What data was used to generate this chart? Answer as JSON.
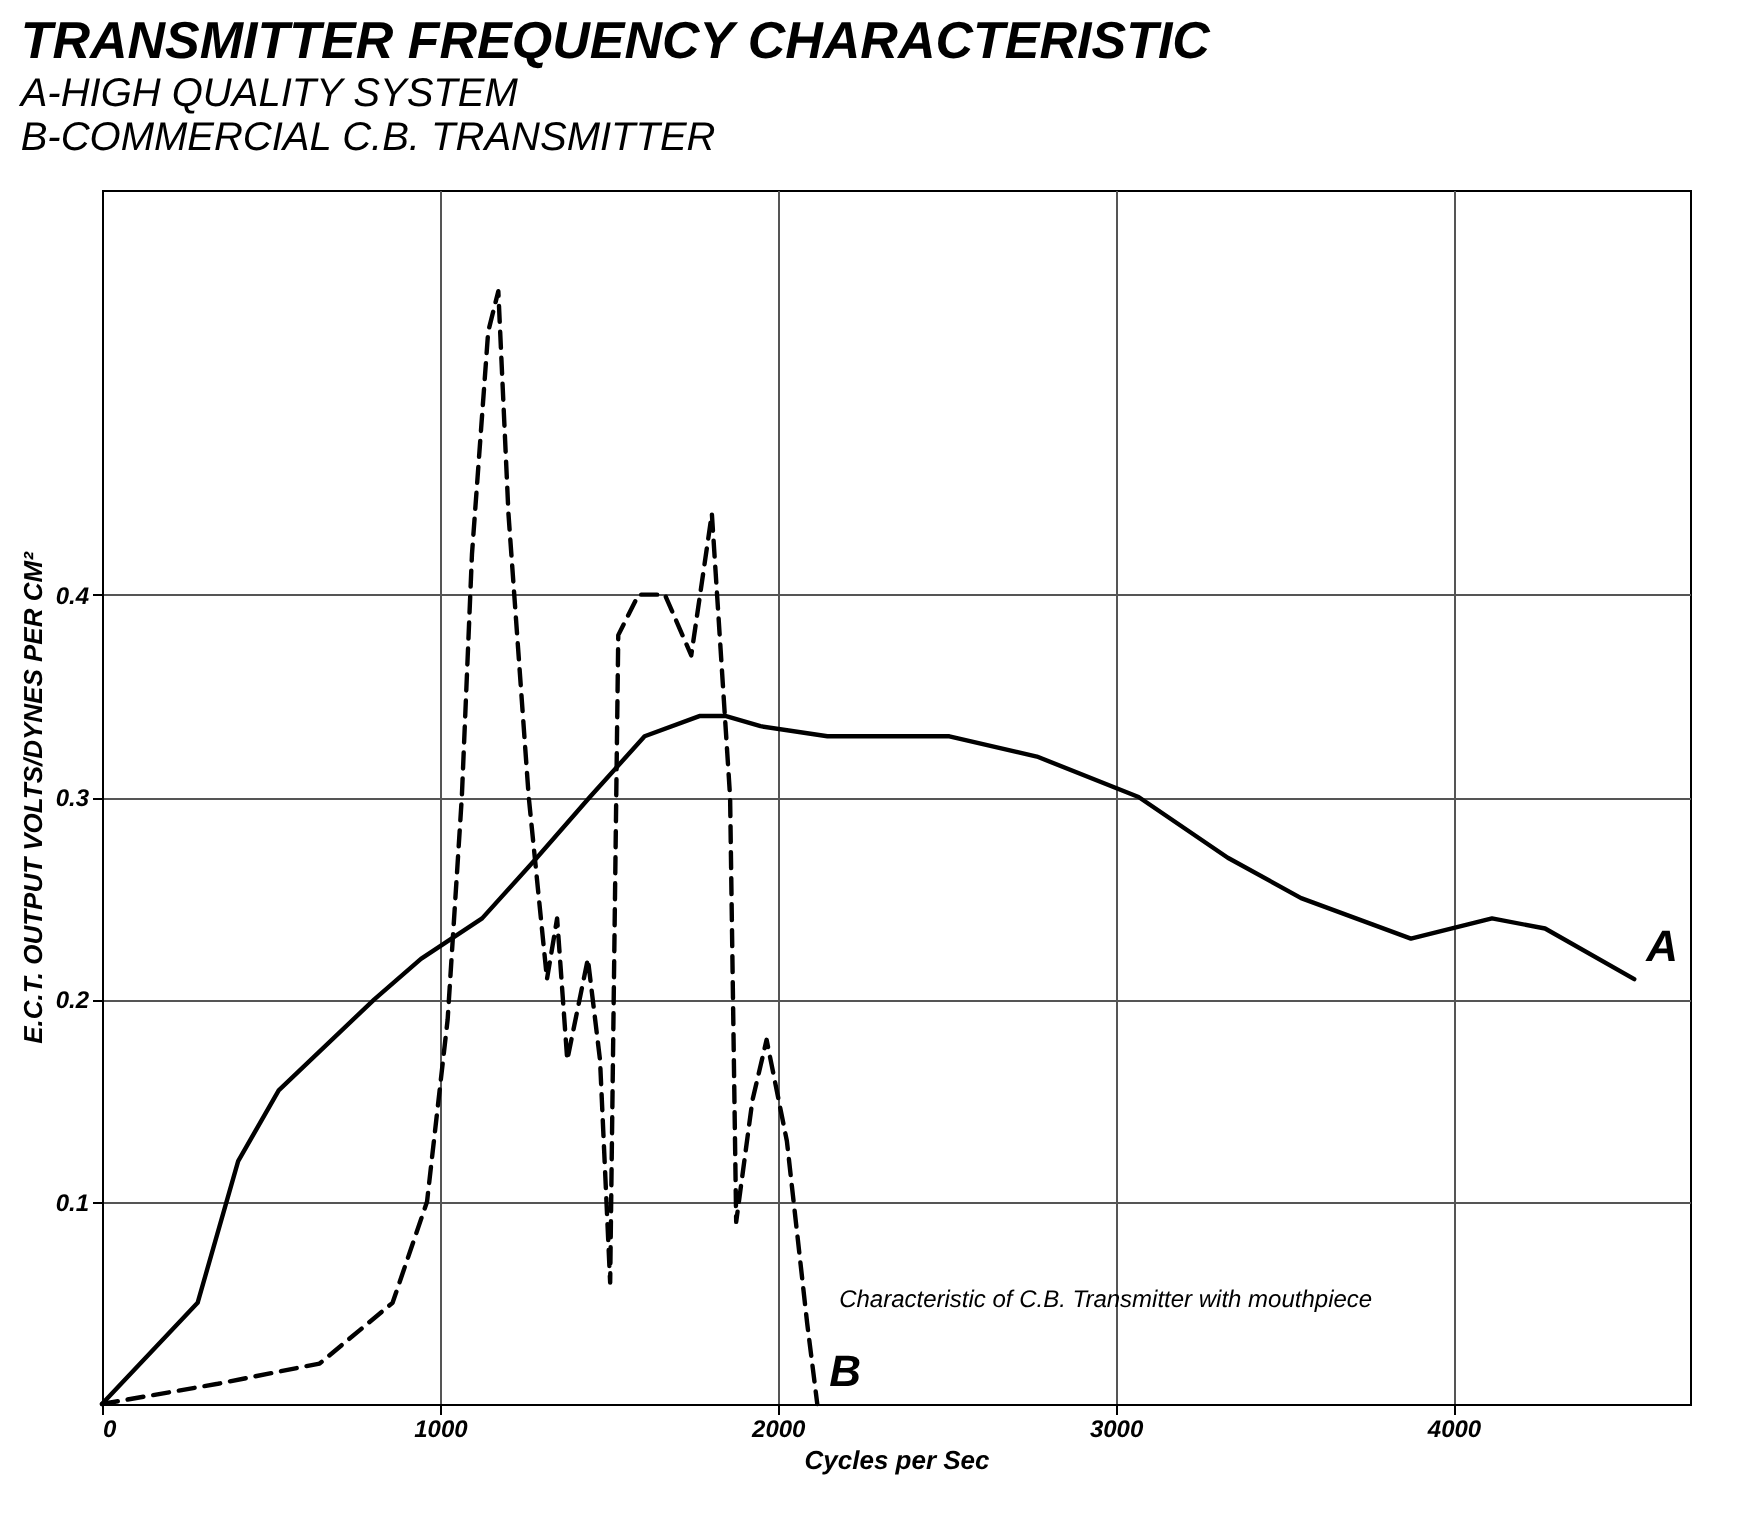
{
  "chart_data": {
    "type": "line",
    "title": "TRANSMITTER FREQUENCY CHARACTERISTIC",
    "subtitle": "A-HIGH QUALITY SYSTEM\nB-COMMERCIAL C.B. TRANSMITTER",
    "xlabel": "Cycles per Sec",
    "ylabel": "E.C.T. OUTPUT VOLTS/DYNES PER CM²",
    "series": [
      {
        "name": "A",
        "color": "#000000",
        "line_style": "solid",
        "x": [
          0,
          283,
          403,
          523,
          806,
          944,
          1125,
          1287,
          1444,
          1606,
          1768,
          1847,
          1949,
          2147,
          2508,
          2767,
          3068,
          3332,
          3549,
          3874,
          4114,
          4271,
          4535
        ],
        "values": [
          0,
          0.05,
          0.12,
          0.155,
          0.2,
          0.22,
          0.24,
          0.27,
          0.3,
          0.33,
          0.34,
          0.34,
          0.335,
          0.33,
          0.33,
          0.32,
          0.3,
          0.27,
          0.25,
          0.23,
          0.24,
          0.235,
          0.21
        ]
      },
      {
        "name": "B",
        "color": "#000000",
        "line_style": "dashed",
        "x": [
          0,
          343,
          644,
          860,
          962,
          1023,
          1065,
          1095,
          1143,
          1173,
          1203,
          1263,
          1317,
          1347,
          1377,
          1438,
          1474,
          1504,
          1528,
          1588,
          1666,
          1744,
          1805,
          1859,
          1877,
          1925,
          1967,
          2027,
          2087,
          2117
        ],
        "values": [
          0,
          0.01,
          0.02,
          0.05,
          0.1,
          0.19,
          0.3,
          0.42,
          0.53,
          0.55,
          0.44,
          0.3,
          0.21,
          0.24,
          0.17,
          0.22,
          0.17,
          0.06,
          0.38,
          0.4,
          0.4,
          0.37,
          0.44,
          0.3,
          0.09,
          0.15,
          0.18,
          0.13,
          0.04,
          0
        ]
      }
    ],
    "annotations": [
      {
        "text": "Characteristic of C.B. Transmitter with mouthpiece",
        "x": 2087,
        "y": 0.06
      }
    ],
    "xlim": [
      0,
      4700
    ],
    "ylim": [
      0,
      0.6
    ],
    "xticks": [
      0,
      1000,
      2000,
      3000,
      4000
    ],
    "yticks": [
      0.1,
      0.2,
      0.3,
      0.4
    ],
    "grid": true,
    "marker": "none"
  }
}
